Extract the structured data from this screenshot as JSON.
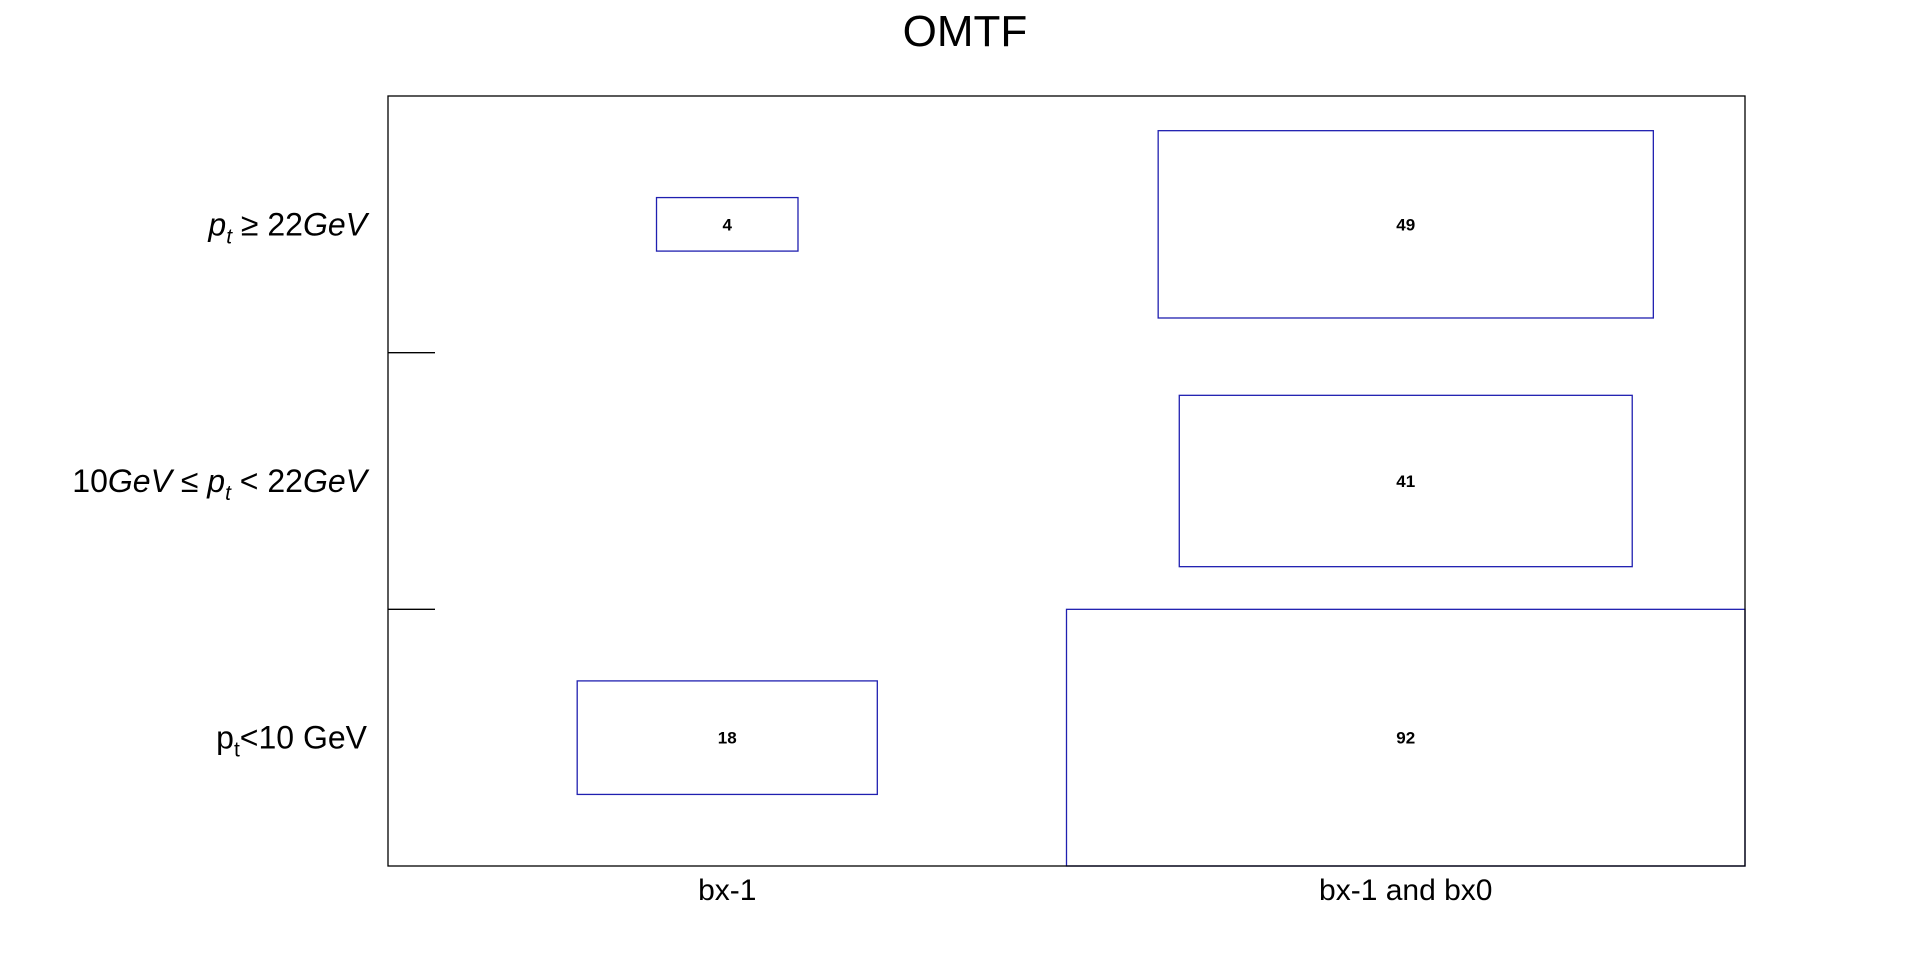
{
  "chart_data": {
    "type": "heatmap",
    "title": "OMTF",
    "x_categories": [
      "bx-1",
      "bx-1 and bx0"
    ],
    "y_categories": [
      {
        "id": "low",
        "parts": [
          {
            "t": "p"
          },
          {
            "t": "t",
            "sub": true
          },
          {
            "t": "<10 GeV"
          }
        ]
      },
      {
        "id": "mid",
        "parts": [
          {
            "t": "10"
          },
          {
            "t": "GeV",
            "it": true
          },
          {
            "t": "  ≤  "
          },
          {
            "t": "p",
            "it": true
          },
          {
            "t": "t",
            "it": true,
            "sub": true
          },
          {
            "t": "  <  22"
          },
          {
            "t": "GeV",
            "it": true
          }
        ]
      },
      {
        "id": "high",
        "parts": [
          {
            "t": "p",
            "it": true
          },
          {
            "t": "t",
            "it": true,
            "sub": true
          },
          {
            "t": "  ≥  22"
          },
          {
            "t": "GeV",
            "it": true
          }
        ]
      }
    ],
    "cells": [
      {
        "x": 0,
        "y": 2,
        "value": 4,
        "label": "4"
      },
      {
        "x": 1,
        "y": 2,
        "value": 49,
        "label": "49"
      },
      {
        "x": 1,
        "y": 1,
        "value": 41,
        "label": "41"
      },
      {
        "x": 0,
        "y": 0,
        "value": 18,
        "label": "18"
      },
      {
        "x": 1,
        "y": 0,
        "value": 92,
        "label": "92"
      }
    ],
    "max_value": 92,
    "box_color": "#2020b0",
    "grid": false
  }
}
